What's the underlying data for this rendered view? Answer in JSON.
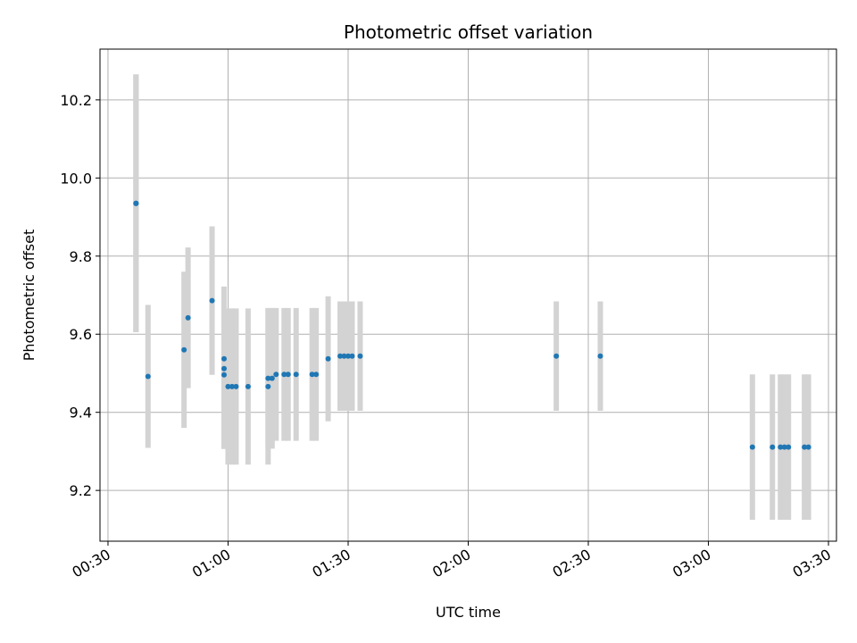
{
  "chart_data": {
    "type": "scatter",
    "title": "Photometric offset variation",
    "xlabel": "UTC time",
    "ylabel": "Photometric offset",
    "x_ticks": [
      "00:30",
      "01:00",
      "01:30",
      "02:00",
      "02:30",
      "03:00",
      "03:30"
    ],
    "x_tick_minutes": [
      30,
      60,
      90,
      120,
      150,
      180,
      210
    ],
    "xlim_minutes": [
      28,
      212
    ],
    "y_ticks": [
      9.2,
      9.4,
      9.6,
      9.8,
      10.0,
      10.2
    ],
    "ylim": [
      9.07,
      10.33
    ],
    "grid": true,
    "colors": {
      "point": "#1f77b4",
      "errorbar": "#d3d3d3",
      "grid": "#b0b0b0"
    },
    "series": [
      {
        "points": [
          {
            "x": "00:37",
            "y": 9.935,
            "err": 0.33
          },
          {
            "x": "00:37",
            "y": 9.935,
            "err": 0.33
          },
          {
            "x": "00:37",
            "y": 9.935,
            "err": 0.33
          },
          {
            "x": "00:40",
            "y": 9.492,
            "err": 0.183
          },
          {
            "x": "00:49",
            "y": 9.56,
            "err": 0.2
          },
          {
            "x": "00:50",
            "y": 9.642,
            "err": 0.18
          },
          {
            "x": "00:56",
            "y": 9.686,
            "err": 0.19
          },
          {
            "x": "00:59",
            "y": 9.537,
            "err": 0.185
          },
          {
            "x": "00:59",
            "y": 9.512,
            "err": 0.19
          },
          {
            "x": "00:59",
            "y": 9.496,
            "err": 0.19
          },
          {
            "x": "01:00",
            "y": 9.466,
            "err": 0.2
          },
          {
            "x": "01:01",
            "y": 9.466,
            "err": 0.2
          },
          {
            "x": "01:02",
            "y": 9.466,
            "err": 0.2
          },
          {
            "x": "01:05",
            "y": 9.466,
            "err": 0.2
          },
          {
            "x": "01:10",
            "y": 9.466,
            "err": 0.2
          },
          {
            "x": "01:10",
            "y": 9.487,
            "err": 0.18
          },
          {
            "x": "01:11",
            "y": 9.487,
            "err": 0.18
          },
          {
            "x": "01:12",
            "y": 9.497,
            "err": 0.17
          },
          {
            "x": "01:14",
            "y": 9.497,
            "err": 0.17
          },
          {
            "x": "01:15",
            "y": 9.497,
            "err": 0.17
          },
          {
            "x": "01:17",
            "y": 9.497,
            "err": 0.17
          },
          {
            "x": "01:21",
            "y": 9.497,
            "err": 0.17
          },
          {
            "x": "01:22",
            "y": 9.497,
            "err": 0.17
          },
          {
            "x": "01:25",
            "y": 9.537,
            "err": 0.16
          },
          {
            "x": "01:28",
            "y": 9.544,
            "err": 0.14
          },
          {
            "x": "01:29",
            "y": 9.544,
            "err": 0.14
          },
          {
            "x": "01:30",
            "y": 9.544,
            "err": 0.14
          },
          {
            "x": "01:31",
            "y": 9.544,
            "err": 0.14
          },
          {
            "x": "01:33",
            "y": 9.544,
            "err": 0.14
          },
          {
            "x": "02:22",
            "y": 9.544,
            "err": 0.14
          },
          {
            "x": "02:33",
            "y": 9.544,
            "err": 0.14
          },
          {
            "x": "03:11",
            "y": 9.311,
            "err": 0.186
          },
          {
            "x": "03:16",
            "y": 9.311,
            "err": 0.186
          },
          {
            "x": "03:18",
            "y": 9.311,
            "err": 0.186
          },
          {
            "x": "03:19",
            "y": 9.311,
            "err": 0.186
          },
          {
            "x": "03:20",
            "y": 9.311,
            "err": 0.186
          },
          {
            "x": "03:24",
            "y": 9.311,
            "err": 0.186
          },
          {
            "x": "03:25",
            "y": 9.311,
            "err": 0.186
          }
        ]
      }
    ]
  }
}
